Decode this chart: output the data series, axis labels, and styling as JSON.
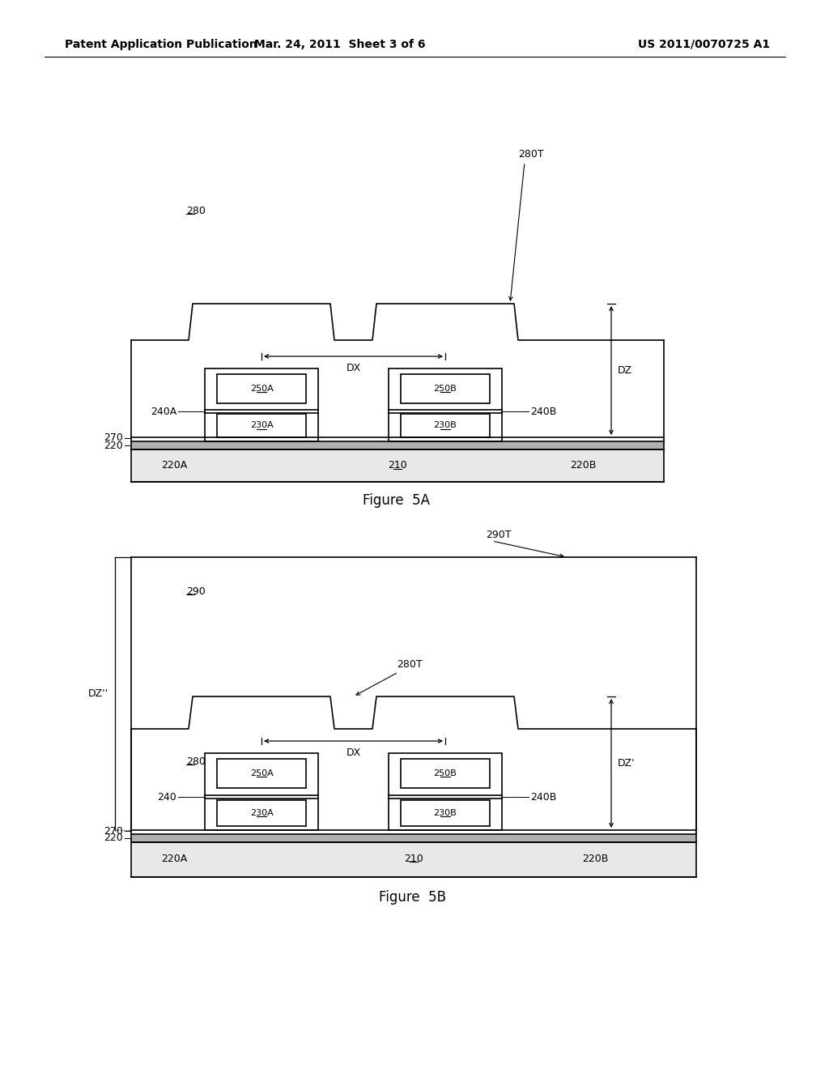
{
  "bg_color": "#ffffff",
  "line_color": "#000000",
  "header_left": "Patent Application Publication",
  "header_mid": "Mar. 24, 2011  Sheet 3 of 6",
  "header_right": "US 2011/0070725 A1",
  "fig5a_caption": "Figure  5A",
  "fig5b_caption": "Figure  5B",
  "font_size_header": 10,
  "font_size_label": 9,
  "font_size_caption": 12
}
